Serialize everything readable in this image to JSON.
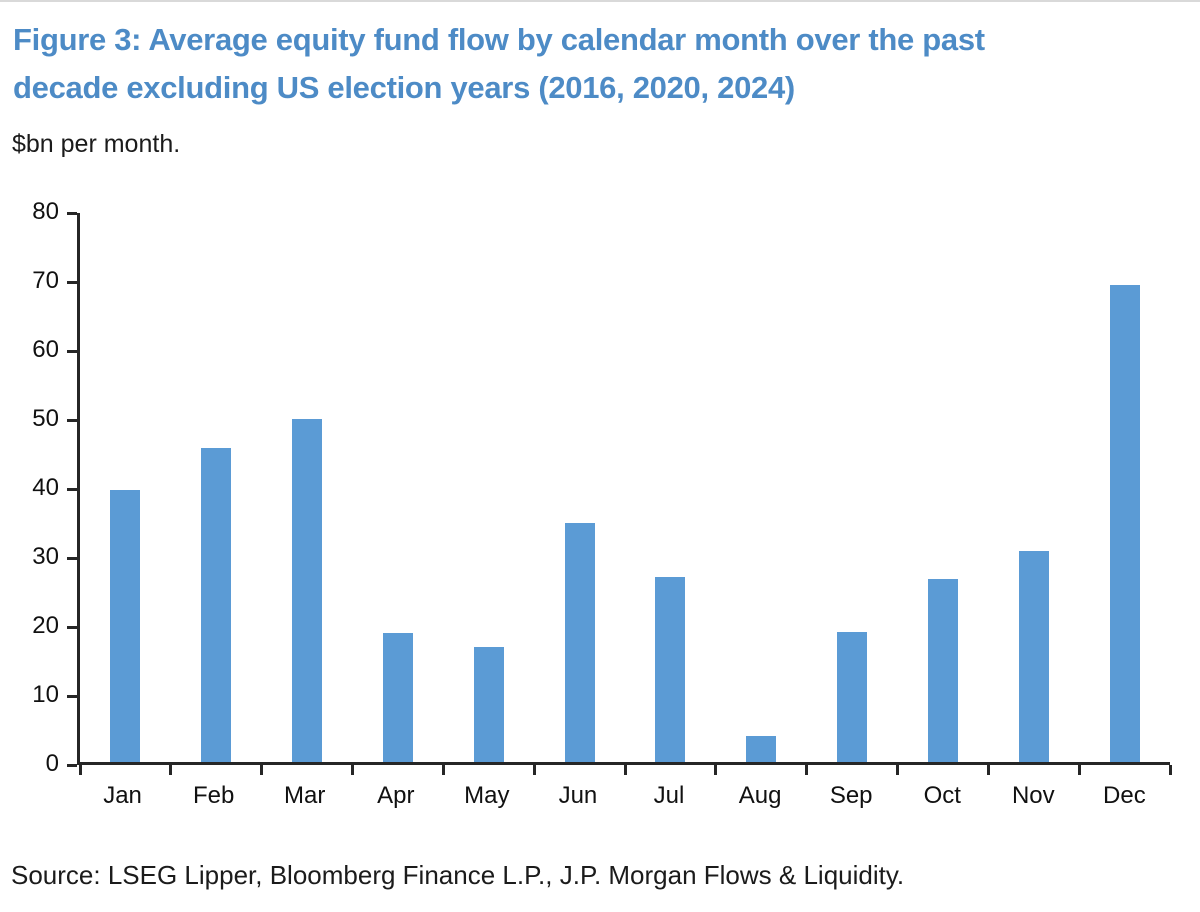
{
  "figure": {
    "title_lines": [
      "Figure 3: Average equity fund flow by calendar month over the past",
      "decade excluding US election years (2016, 2020, 2024)"
    ],
    "subtitle": "$bn per month.",
    "source": "Source: LSEG Lipper, Bloomberg Finance L.P., J.P. Morgan Flows & Liquidity."
  },
  "colors": {
    "title": "#4D8BC6",
    "bar": "#5B9BD5",
    "axis": "#262626"
  },
  "chart_data": {
    "type": "bar",
    "title": "Figure 3: Average equity fund flow by calendar month over the past decade excluding US election years (2016, 2020, 2024)",
    "subtitle": "$bn per month.",
    "categories": [
      "Jan",
      "Feb",
      "Mar",
      "Apr",
      "May",
      "Jun",
      "Jul",
      "Aug",
      "Sep",
      "Oct",
      "Nov",
      "Dec"
    ],
    "values": [
      39.7,
      45.8,
      50.0,
      18.8,
      16.8,
      34.8,
      26.9,
      3.8,
      19.0,
      26.7,
      30.8,
      69.5
    ],
    "xlabel": "",
    "ylabel": "$bn per month",
    "ylim": [
      0,
      80
    ],
    "yticks": [
      0,
      10,
      20,
      30,
      40,
      50,
      60,
      70,
      80
    ],
    "grid": false,
    "legend": false
  }
}
